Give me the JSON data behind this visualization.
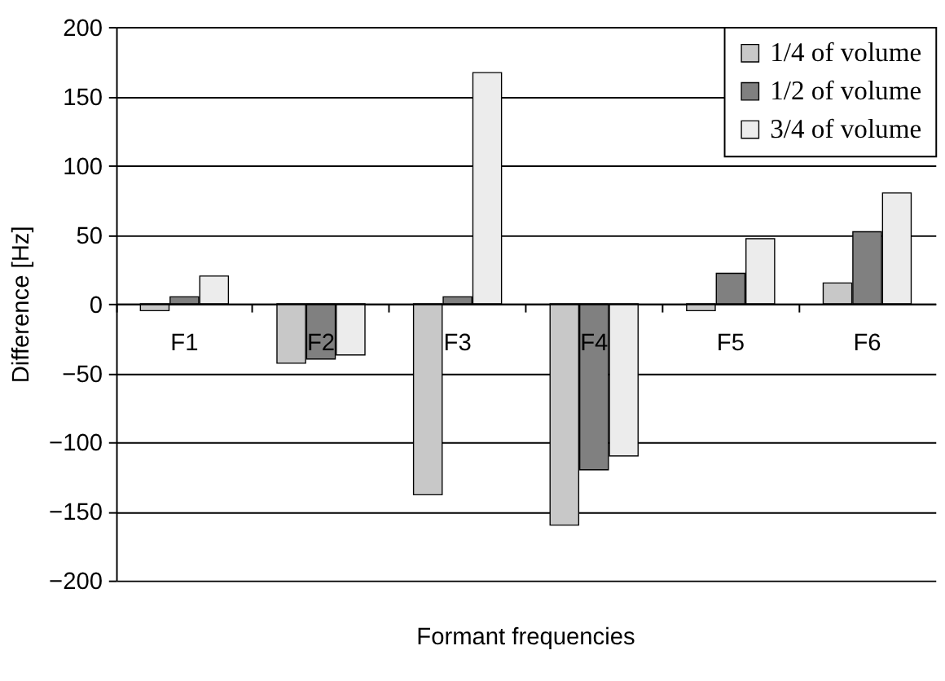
{
  "chart_data": {
    "type": "bar",
    "xlabel": "Formant frequencies",
    "ylabel": "Difference [Hz]",
    "categories": [
      "F1",
      "F2",
      "F3",
      "F4",
      "F5",
      "F6"
    ],
    "series": [
      {
        "name": "1/4 of volume",
        "color": "#c8c8c8",
        "values": [
          -5,
          -43,
          -138,
          -160,
          -5,
          15
        ]
      },
      {
        "name": "1/2 of volume",
        "color": "#808080",
        "values": [
          5,
          -40,
          5,
          -120,
          22,
          52
        ]
      },
      {
        "name": "3/4 of volume",
        "color": "#ececec",
        "values": [
          20,
          -37,
          167,
          -110,
          47,
          80
        ]
      }
    ],
    "ylim": [
      -200,
      200
    ],
    "yticks": [
      -200,
      -150,
      -100,
      -50,
      0,
      50,
      100,
      150,
      200
    ],
    "grid": "y",
    "legend": "top right"
  }
}
